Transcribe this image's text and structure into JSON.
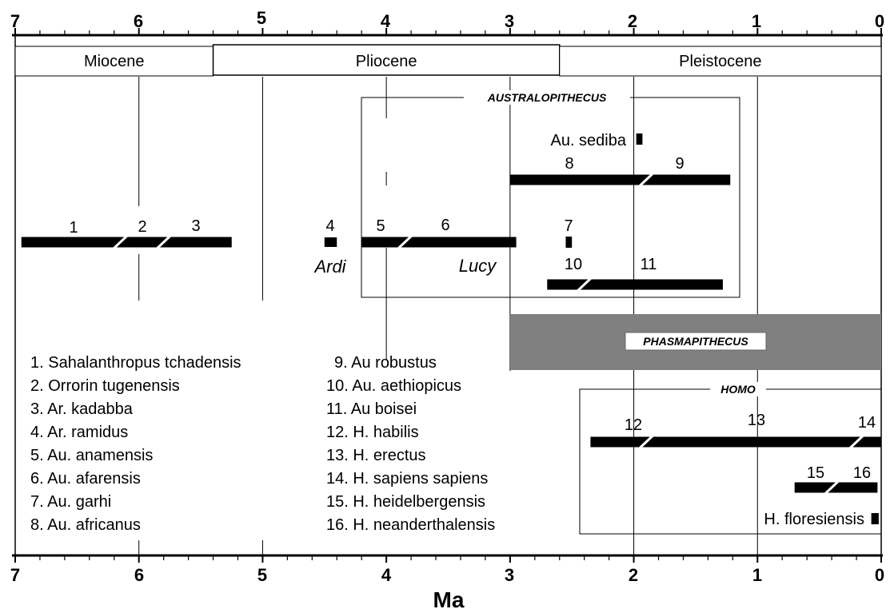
{
  "axis": {
    "unit": "Ma",
    "top_ticks": [
      "7",
      "6",
      "5",
      "4",
      "3",
      "2",
      "1",
      "0"
    ],
    "bottom_ticks": [
      "7",
      "6",
      "5",
      "4",
      "3",
      "2",
      "1",
      "0"
    ],
    "range_ma": [
      7,
      0
    ],
    "minor_tick_step_ma": 0.2
  },
  "epochs": [
    {
      "label": "Miocene",
      "start_ma": 7,
      "end_ma": 5.4
    },
    {
      "label": "Pliocene",
      "start_ma": 5.4,
      "end_ma": 2.6
    },
    {
      "label": "Pleistocene",
      "start_ma": 2.6,
      "end_ma": 0
    }
  ],
  "groups": {
    "australopithecus": {
      "label": "AUSTRALOPITHECUS"
    },
    "phasmapithecus": {
      "label": "PHASMAPITHECUS",
      "start_ma": 3.0,
      "end_ma": 0
    },
    "homo": {
      "label": "HOMO"
    }
  },
  "timeline_bars": [
    {
      "id": "bar-1-3",
      "start_ma": 6.95,
      "end_ma": 5.25,
      "breaks_ma": [
        6.15,
        5.8
      ]
    },
    {
      "id": "bar-4",
      "start_ma": 4.5,
      "end_ma": 4.4,
      "breaks_ma": []
    },
    {
      "id": "bar-5-6",
      "start_ma": 4.2,
      "end_ma": 2.95,
      "breaks_ma": [
        3.85
      ]
    },
    {
      "id": "bar-7",
      "start_ma": 2.55,
      "end_ma": 2.5,
      "breaks_ma": []
    },
    {
      "id": "bar-8-9",
      "start_ma": 3.0,
      "end_ma": 1.22,
      "breaks_ma": [
        1.9
      ]
    },
    {
      "id": "bar-10-11",
      "start_ma": 2.7,
      "end_ma": 1.28,
      "breaks_ma": [
        2.4
      ]
    },
    {
      "id": "bar-sediba",
      "start_ma": 1.98,
      "end_ma": 1.93,
      "breaks_ma": []
    },
    {
      "id": "bar-12-14",
      "start_ma": 2.35,
      "end_ma": 0.0,
      "breaks_ma": [
        1.9,
        0.2
      ]
    },
    {
      "id": "bar-15-16",
      "start_ma": 0.7,
      "end_ma": 0.03,
      "breaks_ma": [
        0.4
      ]
    },
    {
      "id": "bar-floresiensis",
      "start_ma": 0.08,
      "end_ma": 0.02,
      "breaks_ma": []
    }
  ],
  "bar_numbers": [
    "1",
    "2",
    "3",
    "4",
    "5",
    "6",
    "7",
    "8",
    "9",
    "10",
    "11",
    "12",
    "13",
    "14",
    "15",
    "16"
  ],
  "named_labels": {
    "ardi": "Ardi",
    "lucy": "Lucy",
    "sediba": "Au. sediba",
    "floresiensis": "H. floresiensis"
  },
  "legend": {
    "column1": [
      "1. Sahalanthropus tchadensis",
      "2. Orrorin tugenensis",
      "3. Ar. kadabba",
      "4. Ar. ramidus",
      "5. Au. anamensis",
      "6. Au. afarensis",
      "7. Au. garhi",
      "8. Au. africanus"
    ],
    "column2": [
      "9. Au robustus",
      "10. Au. aethiopicus",
      "11. Au boisei",
      "12. H. habilis",
      "13. H. erectus",
      "14. H. sapiens sapiens",
      "15. H. heidelbergensis",
      "16. H. neanderthalensis"
    ]
  },
  "colors": {
    "bar": "#000000",
    "phasmapithecus_band": "#808080",
    "background": "#ffffff",
    "line": "#000000"
  }
}
